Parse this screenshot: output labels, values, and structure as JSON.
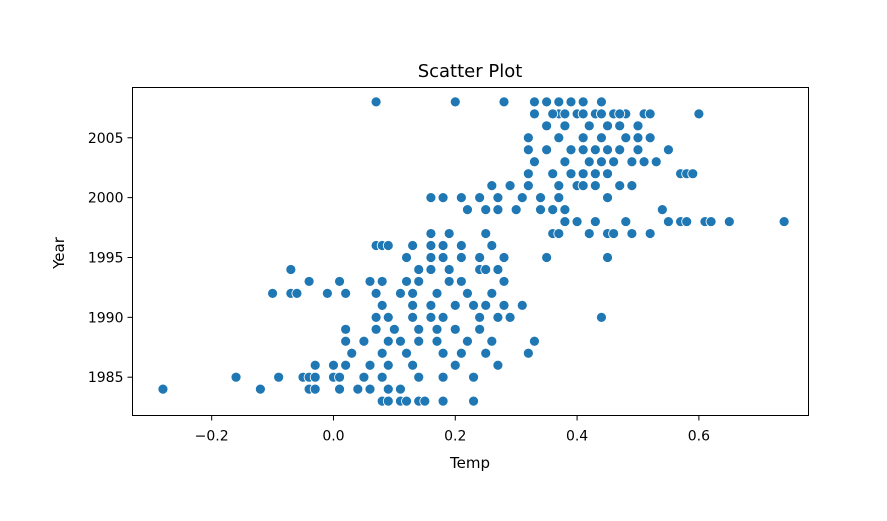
{
  "colors": {
    "point": "#1f77b4",
    "point_edge": "#ffffff",
    "axes": "#000000",
    "background": "#ffffff"
  },
  "chart_data": {
    "type": "scatter",
    "title": "Scatter Plot",
    "xlabel": "Temp",
    "ylabel": "Year",
    "xlim": [
      -0.33,
      0.78
    ],
    "ylim": [
      1981.8,
      2009.2
    ],
    "xticks": [
      -0.2,
      0.0,
      0.2,
      0.4,
      0.6
    ],
    "xtick_labels": [
      "−0.2",
      "0.0",
      "0.2",
      "0.4",
      "0.6"
    ],
    "yticks": [
      1985,
      1990,
      1995,
      2000,
      2005
    ],
    "ytick_labels": [
      "1985",
      "1990",
      "1995",
      "2000",
      "2005"
    ],
    "grid": false,
    "legend": "none",
    "x": [
      0.08,
      0.09,
      0.11,
      0.12,
      0.14,
      0.15,
      0.18,
      0.23,
      -0.28,
      -0.12,
      -0.04,
      -0.03,
      0.01,
      0.04,
      0.06,
      0.09,
      0.11,
      -0.16,
      -0.09,
      -0.05,
      -0.04,
      -0.03,
      0.0,
      0.01,
      0.05,
      0.08,
      0.14,
      0.18,
      0.23,
      -0.03,
      0.0,
      0.02,
      0.06,
      0.09,
      0.13,
      0.2,
      0.27,
      0.03,
      0.08,
      0.12,
      0.18,
      0.21,
      0.25,
      0.32,
      0.02,
      0.05,
      0.09,
      0.11,
      0.14,
      0.17,
      0.22,
      0.26,
      0.33,
      0.02,
      0.07,
      0.1,
      0.14,
      0.17,
      0.2,
      0.24,
      0.07,
      0.09,
      0.13,
      0.16,
      0.18,
      0.24,
      0.27,
      0.29,
      0.44,
      0.08,
      0.13,
      0.16,
      0.2,
      0.23,
      0.25,
      0.28,
      0.31,
      -0.1,
      -0.07,
      -0.06,
      -0.01,
      0.02,
      0.07,
      0.11,
      0.13,
      0.17,
      0.22,
      0.26,
      -0.04,
      0.01,
      0.06,
      0.08,
      0.12,
      0.14,
      0.19,
      0.21,
      0.28,
      -0.07,
      0.14,
      0.16,
      0.19,
      0.24,
      0.25,
      0.27,
      0.12,
      0.16,
      0.18,
      0.21,
      0.24,
      0.28,
      0.35,
      0.45,
      0.07,
      0.08,
      0.09,
      0.13,
      0.16,
      0.18,
      0.21,
      0.26,
      0.16,
      0.19,
      0.25,
      0.36,
      0.37,
      0.42,
      0.45,
      0.46,
      0.49,
      0.52,
      0.38,
      0.4,
      0.43,
      0.48,
      0.55,
      0.57,
      0.58,
      0.61,
      0.62,
      0.65,
      0.74,
      0.22,
      0.25,
      0.27,
      0.3,
      0.34,
      0.36,
      0.38,
      0.54,
      0.16,
      0.18,
      0.21,
      0.24,
      0.27,
      0.31,
      0.34,
      0.37,
      0.45,
      0.26,
      0.29,
      0.32,
      0.37,
      0.4,
      0.41,
      0.43,
      0.47,
      0.49,
      0.32,
      0.36,
      0.39,
      0.41,
      0.43,
      0.45,
      0.57,
      0.58,
      0.59,
      0.33,
      0.38,
      0.42,
      0.44,
      0.46,
      0.49,
      0.51,
      0.53,
      0.32,
      0.35,
      0.39,
      0.41,
      0.43,
      0.45,
      0.47,
      0.5,
      0.55,
      0.32,
      0.37,
      0.41,
      0.44,
      0.48,
      0.5,
      0.52,
      0.35,
      0.38,
      0.42,
      0.45,
      0.47,
      0.5,
      0.33,
      0.37,
      0.4,
      0.43,
      0.46,
      0.48,
      0.51,
      0.36,
      0.38,
      0.41,
      0.44,
      0.47,
      0.52,
      0.6,
      0.07,
      0.2,
      0.28,
      0.33,
      0.35,
      0.37,
      0.39,
      0.41,
      0.44
    ],
    "y": [
      1983,
      1983,
      1983,
      1983,
      1983,
      1983,
      1983,
      1983,
      1984,
      1984,
      1984,
      1984,
      1984,
      1984,
      1984,
      1984,
      1984,
      1985,
      1985,
      1985,
      1985,
      1985,
      1985,
      1985,
      1985,
      1985,
      1985,
      1985,
      1985,
      1986,
      1986,
      1986,
      1986,
      1986,
      1986,
      1986,
      1986,
      1987,
      1987,
      1987,
      1987,
      1987,
      1987,
      1987,
      1988,
      1988,
      1988,
      1988,
      1988,
      1988,
      1988,
      1988,
      1988,
      1989,
      1989,
      1989,
      1989,
      1989,
      1989,
      1989,
      1990,
      1990,
      1990,
      1990,
      1990,
      1990,
      1990,
      1990,
      1990,
      1991,
      1991,
      1991,
      1991,
      1991,
      1991,
      1991,
      1991,
      1992,
      1992,
      1992,
      1992,
      1992,
      1992,
      1992,
      1992,
      1992,
      1992,
      1992,
      1993,
      1993,
      1993,
      1993,
      1993,
      1993,
      1993,
      1993,
      1993,
      1994,
      1994,
      1994,
      1994,
      1994,
      1994,
      1994,
      1995,
      1995,
      1995,
      1995,
      1995,
      1995,
      1995,
      1995,
      1996,
      1996,
      1996,
      1996,
      1996,
      1996,
      1996,
      1996,
      1997,
      1997,
      1997,
      1997,
      1997,
      1997,
      1997,
      1997,
      1997,
      1997,
      1998,
      1998,
      1998,
      1998,
      1998,
      1998,
      1998,
      1998,
      1998,
      1998,
      1998,
      1999,
      1999,
      1999,
      1999,
      1999,
      1999,
      1999,
      1999,
      2000,
      2000,
      2000,
      2000,
      2000,
      2000,
      2000,
      2000,
      2000,
      2001,
      2001,
      2001,
      2001,
      2001,
      2001,
      2001,
      2001,
      2001,
      2002,
      2002,
      2002,
      2002,
      2002,
      2002,
      2002,
      2002,
      2002,
      2003,
      2003,
      2003,
      2003,
      2003,
      2003,
      2003,
      2003,
      2004,
      2004,
      2004,
      2004,
      2004,
      2004,
      2004,
      2004,
      2004,
      2005,
      2005,
      2005,
      2005,
      2005,
      2005,
      2005,
      2006,
      2006,
      2006,
      2006,
      2006,
      2006,
      2007,
      2007,
      2007,
      2007,
      2007,
      2007,
      2007,
      2007,
      2007,
      2007,
      2007,
      2007,
      2007,
      2007,
      2008,
      2008,
      2008,
      2008,
      2008,
      2008,
      2008,
      2008,
      2008
    ]
  }
}
